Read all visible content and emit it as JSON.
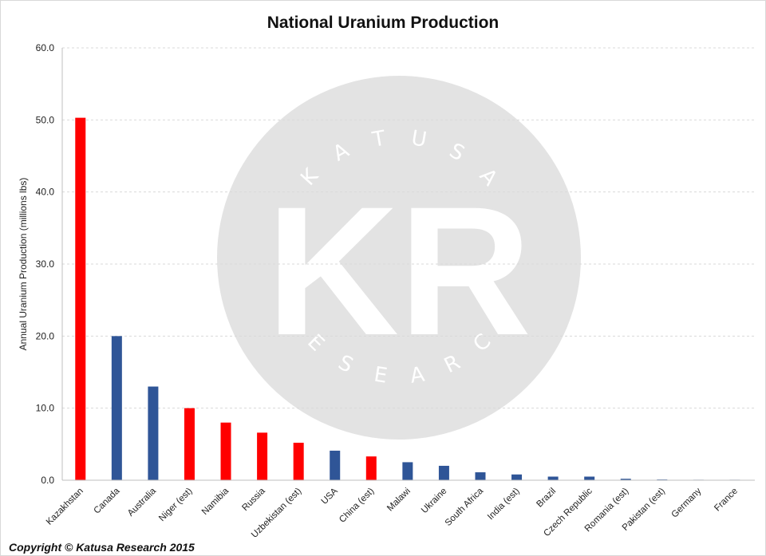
{
  "chart_data": {
    "type": "bar",
    "title": "National Uranium Production",
    "ylabel": "Annual Uranium Production (millions lbs)",
    "xlabel": "",
    "ylim": [
      0,
      60
    ],
    "yticks": [
      "0.0",
      "10.0",
      "20.0",
      "30.0",
      "40.0",
      "50.0",
      "60.0"
    ],
    "grid": true,
    "categories": [
      "Kazakhstan",
      "Canada",
      "Australia",
      "Niger (est)",
      "Namibia",
      "Russia",
      "Uzbekistan (est)",
      "USA",
      "China (est)",
      "Malawi",
      "Ukraine",
      "South Africa",
      "India (est)",
      "Brazil",
      "Czech Republic",
      "Romania (est)",
      "Pakistan (est)",
      "Germany",
      "France"
    ],
    "values": [
      50.3,
      20.0,
      13.0,
      10.0,
      8.0,
      6.6,
      5.2,
      4.1,
      3.3,
      2.5,
      2.0,
      1.1,
      0.8,
      0.5,
      0.5,
      0.2,
      0.1,
      0.05,
      0.02
    ],
    "bar_colors": [
      "#ff0000",
      "#2f5597",
      "#2f5597",
      "#ff0000",
      "#ff0000",
      "#ff0000",
      "#ff0000",
      "#2f5597",
      "#ff0000",
      "#2f5597",
      "#2f5597",
      "#2f5597",
      "#2f5597",
      "#2f5597",
      "#2f5597",
      "#2f5597",
      "#2f5597",
      "#2f5597",
      "#2f5597"
    ]
  },
  "colors": {
    "red": "#ff0000",
    "blue": "#2f5597",
    "watermark_circle": "#e3e3e3",
    "gridline": "#d9d9d9"
  },
  "watermark": {
    "top_text": "KATUSA",
    "main_text": "KR",
    "bottom_text": "RESEARCH"
  },
  "footer": {
    "copyright": "Copyright © Katusa Research 2015"
  }
}
